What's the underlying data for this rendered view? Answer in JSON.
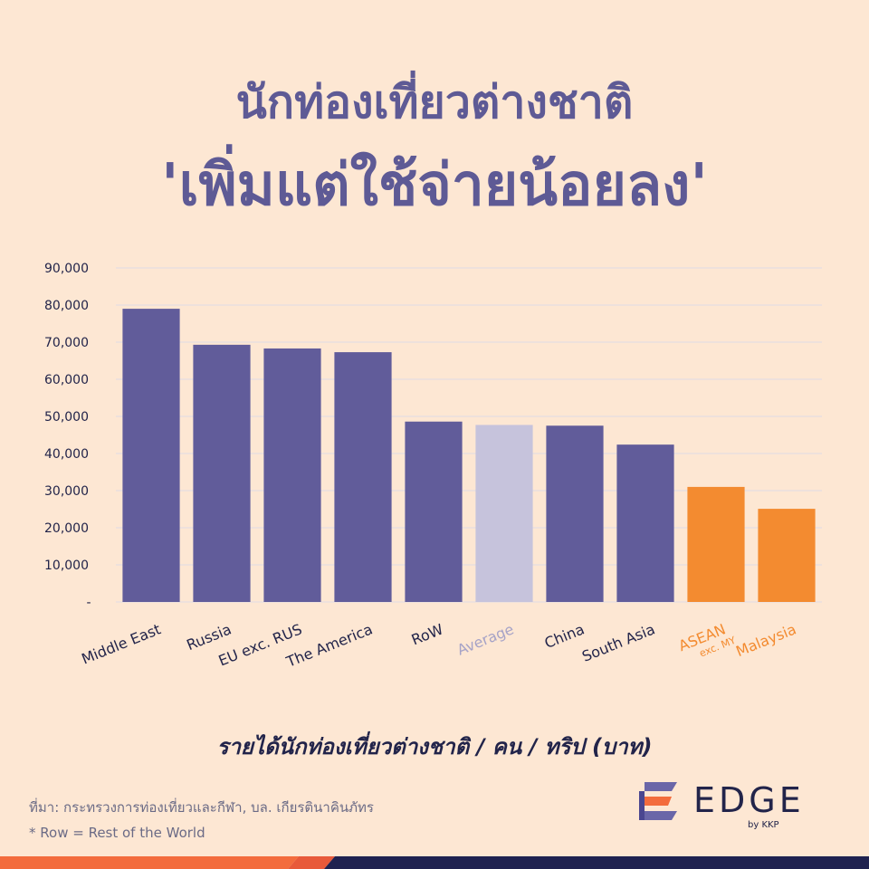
{
  "title_line1": "นักท่องเที่ยวต่างชาติ",
  "title_line2": "'เพิ่มแต่ใช้จ่ายน้อยลง'",
  "caption": "รายได้นักท่องเที่ยวต่างชาติ / คน / ทริป (บาท)",
  "source": "ที่มา:  กระทรวงการท่องเที่ยวและกีฬา,  บล. เกียรตินาคินภัทร",
  "footnote": "* Row = Rest of the World",
  "logo": {
    "word": "EDGE",
    "sub": "by KKP"
  },
  "colors": {
    "background": "#fde7d3",
    "title": "#5e5a95",
    "bar_default": "#615c9a",
    "bar_average": "#c6c3dc",
    "bar_asean": "#f38b30",
    "label_dark": "#22244a",
    "label_average": "#a6a3c7",
    "label_orange": "#f38b30",
    "gridline": "#e9dfe0"
  },
  "chart_data": {
    "type": "bar",
    "title": "",
    "xlabel": "",
    "ylabel": "",
    "ylim": [
      0,
      90000
    ],
    "yticks": [
      0,
      10000,
      20000,
      30000,
      40000,
      50000,
      60000,
      70000,
      80000,
      90000
    ],
    "ytick_labels": [
      "-",
      "10,000",
      "20,000",
      "30,000",
      "40,000",
      "50,000",
      "60,000",
      "70,000",
      "80,000",
      "90,000"
    ],
    "grid": true,
    "categories": [
      "Middle East",
      "Russia",
      "EU exc. RUS",
      "The America",
      "RoW",
      "Average",
      "China",
      "South Asia",
      "ASEAN",
      "Malaysia"
    ],
    "category_sublabels": [
      "",
      "",
      "",
      "",
      "",
      "",
      "",
      "",
      "exc. MY",
      ""
    ],
    "values": [
      79000,
      69300,
      68300,
      67300,
      48600,
      47700,
      47500,
      42400,
      31000,
      25100
    ],
    "bar_color_keys": [
      "bar_default",
      "bar_default",
      "bar_default",
      "bar_default",
      "bar_default",
      "bar_average",
      "bar_default",
      "bar_default",
      "bar_asean",
      "bar_asean"
    ],
    "label_color_keys": [
      "label_dark",
      "label_dark",
      "label_dark",
      "label_dark",
      "label_dark",
      "label_average",
      "label_dark",
      "label_dark",
      "label_orange",
      "label_orange"
    ]
  }
}
